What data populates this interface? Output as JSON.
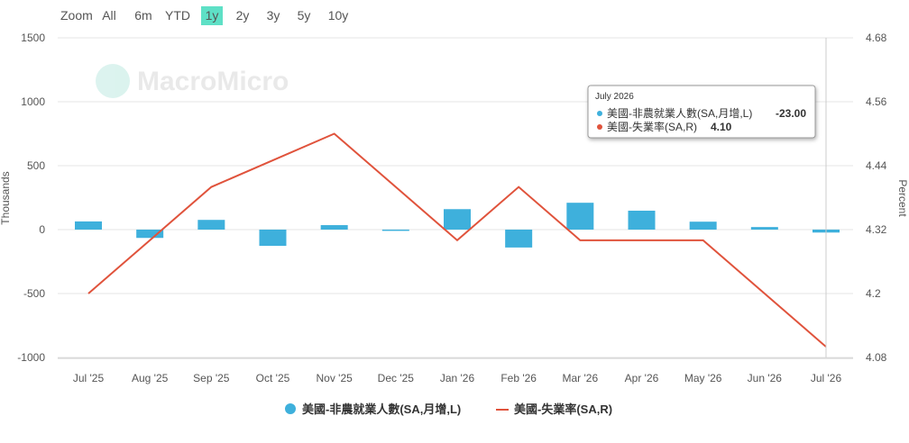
{
  "zoom": {
    "label": "Zoom",
    "options": [
      "All",
      "6m",
      "YTD",
      "1y",
      "2y",
      "3y",
      "5y",
      "10y"
    ],
    "active": "1y"
  },
  "watermark": "MacroMicro",
  "chart_data": {
    "type": "bar-line",
    "categories": [
      "Jul '25",
      "Aug '25",
      "Sep '25",
      "Oct '25",
      "Nov '25",
      "Dec '25",
      "Jan '26",
      "Feb '26",
      "Mar '26",
      "Apr '26",
      "May '26",
      "Jun '26",
      "Jul '26"
    ],
    "y_label": "Thousands",
    "y2_label": "Percent",
    "ylim": [
      -1000,
      1500
    ],
    "yticks": [
      -1000,
      -500,
      0,
      500,
      1000,
      1500
    ],
    "y2lim": [
      4.08,
      4.68
    ],
    "y2ticks": [
      4.08,
      4.2,
      4.32,
      4.44,
      4.56,
      4.68
    ],
    "grid": true,
    "series": [
      {
        "name": "美國-非農就業人數(SA,月增,L)",
        "type": "bar",
        "color": "#3eb0dc",
        "values": [
          64,
          -65,
          76,
          -127,
          35,
          -10,
          160,
          -140,
          210,
          148,
          62,
          20,
          -23
        ]
      },
      {
        "name": "美國-失業率(SA,R)",
        "type": "line",
        "axis": "y2",
        "color": "#e0533c",
        "values": [
          4.2,
          4.3,
          4.4,
          4.45,
          4.5,
          4.4,
          4.3,
          4.4,
          4.3,
          4.3,
          4.3,
          4.2,
          4.1
        ]
      }
    ],
    "tooltip": {
      "title": "July 2026",
      "value_labels": [
        "-23.00",
        "4.10"
      ]
    }
  }
}
